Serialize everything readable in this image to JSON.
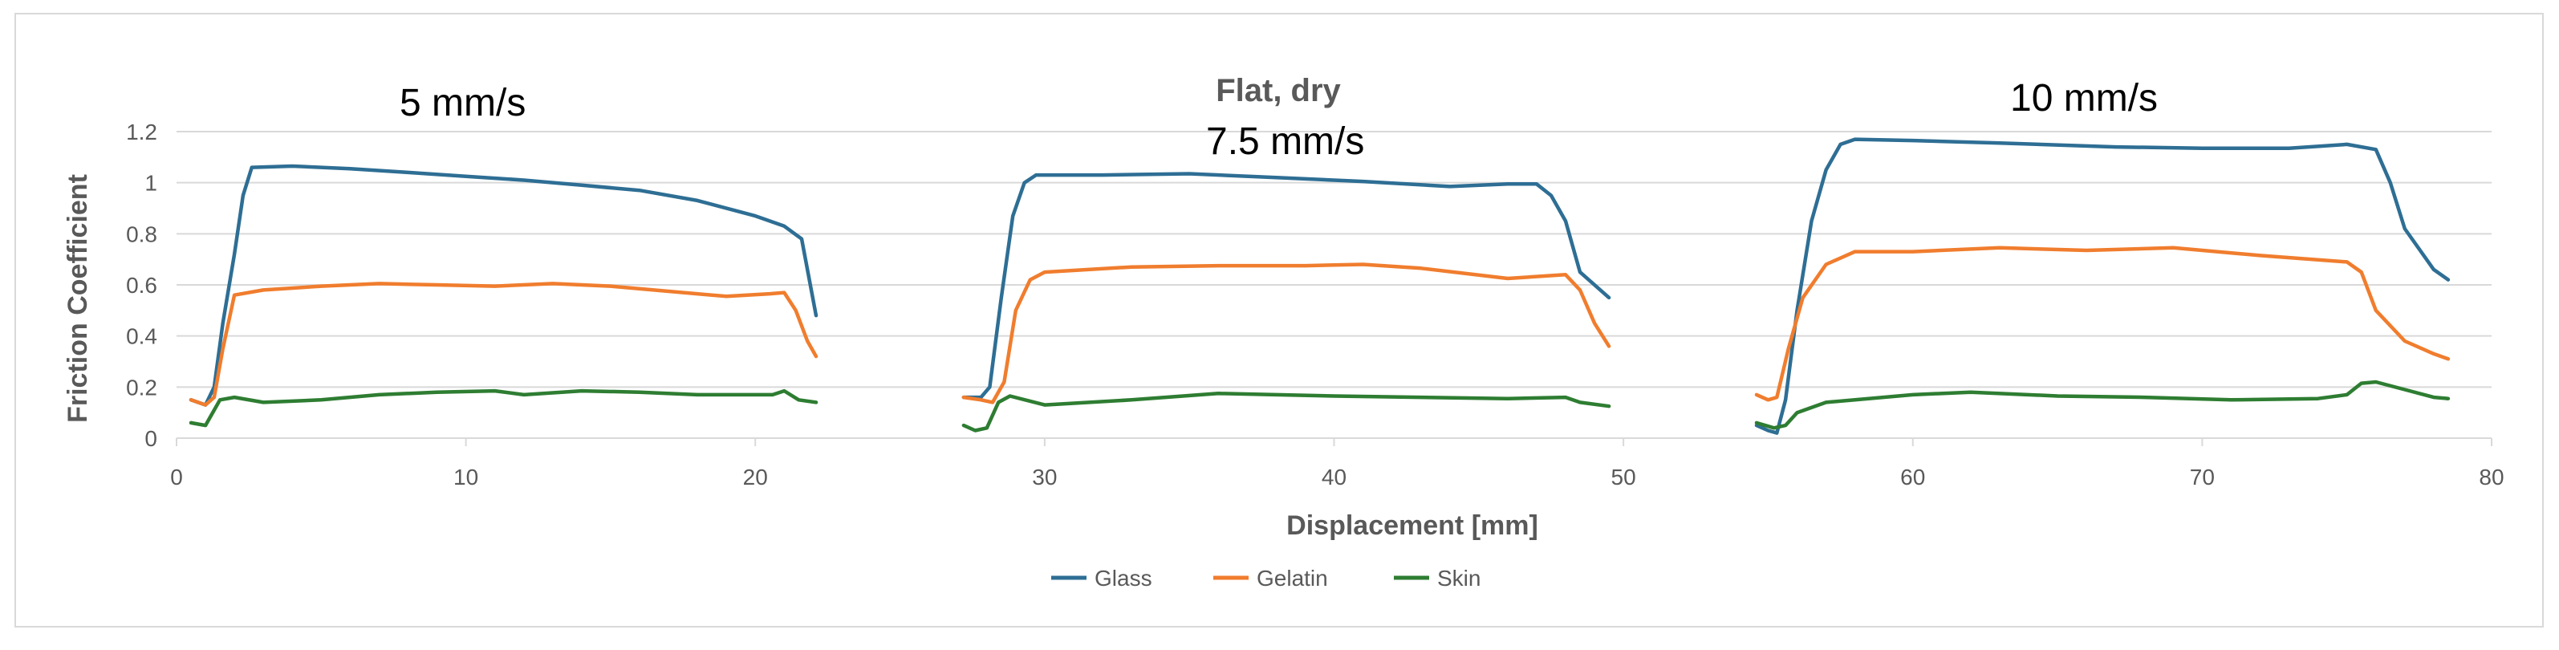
{
  "chart_data": {
    "type": "line",
    "title": "Flat, dry",
    "xlabel": "Displacement [mm]",
    "ylabel": "Friction Coefficient",
    "xlim": [
      0,
      80
    ],
    "ylim": [
      0,
      1.2
    ],
    "xticks": [
      "0",
      "10",
      "20",
      "30",
      "40",
      "50",
      "60",
      "70",
      "80"
    ],
    "yticks": [
      "0",
      "0.2",
      "0.4",
      "0.6",
      "0.8",
      "1",
      "1.2"
    ],
    "grid": "horizontal",
    "legend_position": "bottom",
    "annotations": [
      "5 mm/s",
      "7.5 mm/s",
      "10 mm/s"
    ],
    "series": [
      {
        "name": "Glass",
        "color": "#2e6e94",
        "segments": [
          [
            [
              0.5,
              0.15
            ],
            [
              1.0,
              0.13
            ],
            [
              1.3,
              0.2
            ],
            [
              1.6,
              0.45
            ],
            [
              2.0,
              0.72
            ],
            [
              2.3,
              0.95
            ],
            [
              2.6,
              1.06
            ],
            [
              4,
              1.065
            ],
            [
              6,
              1.055
            ],
            [
              8,
              1.04
            ],
            [
              10,
              1.025
            ],
            [
              12,
              1.01
            ],
            [
              14,
              0.99
            ],
            [
              16,
              0.97
            ],
            [
              18,
              0.93
            ],
            [
              20,
              0.87
            ],
            [
              21,
              0.83
            ],
            [
              21.6,
              0.78
            ],
            [
              22.1,
              0.48
            ]
          ],
          [
            [
              27.2,
              0.16
            ],
            [
              27.8,
              0.16
            ],
            [
              28.1,
              0.2
            ],
            [
              28.5,
              0.55
            ],
            [
              28.9,
              0.87
            ],
            [
              29.3,
              1.0
            ],
            [
              29.7,
              1.03
            ],
            [
              32,
              1.03
            ],
            [
              35,
              1.035
            ],
            [
              38,
              1.02
            ],
            [
              41,
              1.005
            ],
            [
              44,
              0.985
            ],
            [
              46,
              0.995
            ],
            [
              47,
              0.995
            ],
            [
              47.5,
              0.95
            ],
            [
              48,
              0.85
            ],
            [
              48.5,
              0.65
            ],
            [
              49.5,
              0.55
            ]
          ],
          [
            [
              54.6,
              0.05
            ],
            [
              55.0,
              0.03
            ],
            [
              55.3,
              0.02
            ],
            [
              55.6,
              0.15
            ],
            [
              56.0,
              0.5
            ],
            [
              56.5,
              0.85
            ],
            [
              57.0,
              1.05
            ],
            [
              57.5,
              1.15
            ],
            [
              58,
              1.17
            ],
            [
              60,
              1.165
            ],
            [
              63,
              1.155
            ],
            [
              67,
              1.14
            ],
            [
              70,
              1.135
            ],
            [
              73,
              1.135
            ],
            [
              75,
              1.15
            ],
            [
              76,
              1.13
            ],
            [
              76.5,
              1.0
            ],
            [
              77,
              0.82
            ],
            [
              78,
              0.66
            ],
            [
              78.5,
              0.62
            ]
          ]
        ]
      },
      {
        "name": "Gelatin",
        "color": "#f07d2e",
        "segments": [
          [
            [
              0.5,
              0.15
            ],
            [
              1.0,
              0.13
            ],
            [
              1.3,
              0.16
            ],
            [
              1.6,
              0.35
            ],
            [
              2.0,
              0.56
            ],
            [
              3,
              0.58
            ],
            [
              5,
              0.595
            ],
            [
              7,
              0.605
            ],
            [
              9,
              0.6
            ],
            [
              11,
              0.595
            ],
            [
              13,
              0.605
            ],
            [
              15,
              0.595
            ],
            [
              17,
              0.575
            ],
            [
              19,
              0.555
            ],
            [
              20.5,
              0.565
            ],
            [
              21,
              0.57
            ],
            [
              21.4,
              0.5
            ],
            [
              21.8,
              0.38
            ],
            [
              22.1,
              0.32
            ]
          ],
          [
            [
              27.2,
              0.16
            ],
            [
              27.8,
              0.15
            ],
            [
              28.2,
              0.14
            ],
            [
              28.6,
              0.22
            ],
            [
              29,
              0.5
            ],
            [
              29.5,
              0.62
            ],
            [
              30,
              0.65
            ],
            [
              33,
              0.67
            ],
            [
              36,
              0.675
            ],
            [
              39,
              0.675
            ],
            [
              41,
              0.68
            ],
            [
              43,
              0.665
            ],
            [
              46,
              0.625
            ],
            [
              48,
              0.64
            ],
            [
              48.5,
              0.58
            ],
            [
              49,
              0.45
            ],
            [
              49.5,
              0.36
            ]
          ],
          [
            [
              54.6,
              0.17
            ],
            [
              55.0,
              0.15
            ],
            [
              55.3,
              0.16
            ],
            [
              55.7,
              0.35
            ],
            [
              56.2,
              0.55
            ],
            [
              57,
              0.68
            ],
            [
              58,
              0.73
            ],
            [
              60,
              0.73
            ],
            [
              63,
              0.745
            ],
            [
              66,
              0.735
            ],
            [
              69,
              0.745
            ],
            [
              72,
              0.715
            ],
            [
              75,
              0.69
            ],
            [
              75.5,
              0.65
            ],
            [
              76,
              0.5
            ],
            [
              77,
              0.38
            ],
            [
              78,
              0.33
            ],
            [
              78.5,
              0.31
            ]
          ]
        ]
      },
      {
        "name": "Skin",
        "color": "#2e7d32",
        "segments": [
          [
            [
              0.5,
              0.06
            ],
            [
              1.0,
              0.05
            ],
            [
              1.5,
              0.15
            ],
            [
              2,
              0.16
            ],
            [
              3,
              0.14
            ],
            [
              5,
              0.15
            ],
            [
              7,
              0.17
            ],
            [
              9,
              0.18
            ],
            [
              11,
              0.185
            ],
            [
              12,
              0.17
            ],
            [
              14,
              0.185
            ],
            [
              16,
              0.18
            ],
            [
              18,
              0.17
            ],
            [
              20,
              0.17
            ],
            [
              20.6,
              0.17
            ],
            [
              21,
              0.185
            ],
            [
              21.5,
              0.15
            ],
            [
              22.1,
              0.14
            ]
          ],
          [
            [
              27.2,
              0.05
            ],
            [
              27.6,
              0.03
            ],
            [
              28,
              0.04
            ],
            [
              28.4,
              0.14
            ],
            [
              28.8,
              0.165
            ],
            [
              30,
              0.13
            ],
            [
              33,
              0.15
            ],
            [
              36,
              0.175
            ],
            [
              38,
              0.17
            ],
            [
              40,
              0.165
            ],
            [
              43,
              0.16
            ],
            [
              46,
              0.155
            ],
            [
              48,
              0.16
            ],
            [
              48.5,
              0.14
            ],
            [
              49.5,
              0.125
            ]
          ],
          [
            [
              54.6,
              0.06
            ],
            [
              55.2,
              0.04
            ],
            [
              55.6,
              0.05
            ],
            [
              56,
              0.1
            ],
            [
              57,
              0.14
            ],
            [
              60,
              0.17
            ],
            [
              62,
              0.18
            ],
            [
              65,
              0.165
            ],
            [
              68,
              0.16
            ],
            [
              71,
              0.15
            ],
            [
              74,
              0.155
            ],
            [
              75,
              0.17
            ],
            [
              75.5,
              0.215
            ],
            [
              76,
              0.22
            ],
            [
              77,
              0.19
            ],
            [
              78,
              0.16
            ],
            [
              78.5,
              0.155
            ]
          ]
        ]
      }
    ]
  }
}
